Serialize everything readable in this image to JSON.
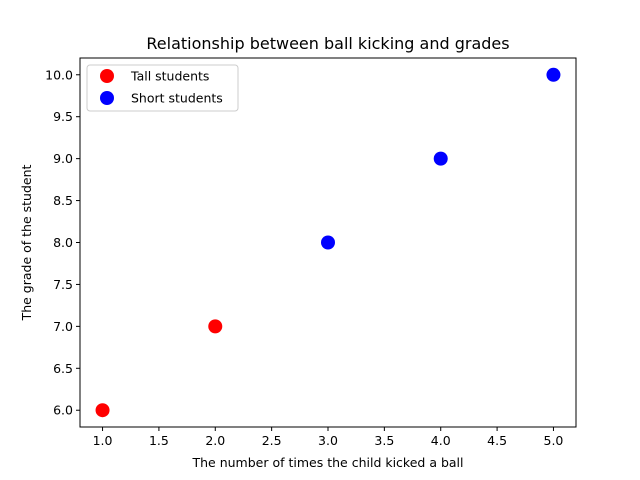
{
  "chart_data": {
    "type": "scatter",
    "title": "Relationship between ball kicking and grades",
    "xlabel": "The number of times the child kicked a ball",
    "ylabel": "The grade of the student",
    "xlim": [
      0.8,
      5.2
    ],
    "ylim": [
      5.8,
      10.2
    ],
    "xticks": [
      "1.0",
      "1.5",
      "2.0",
      "2.5",
      "3.0",
      "3.5",
      "4.0",
      "4.5",
      "5.0"
    ],
    "yticks": [
      "6.0",
      "6.5",
      "7.0",
      "7.5",
      "8.0",
      "8.5",
      "9.0",
      "9.5",
      "10.0"
    ],
    "grid": false,
    "legend_position": "upper-left",
    "series": [
      {
        "name": "Tall students",
        "color": "#ff0000",
        "x": [
          1,
          2
        ],
        "y": [
          6,
          7
        ]
      },
      {
        "name": "Short students",
        "color": "#0000ff",
        "x": [
          3,
          4,
          5
        ],
        "y": [
          8,
          9,
          10
        ]
      }
    ]
  }
}
